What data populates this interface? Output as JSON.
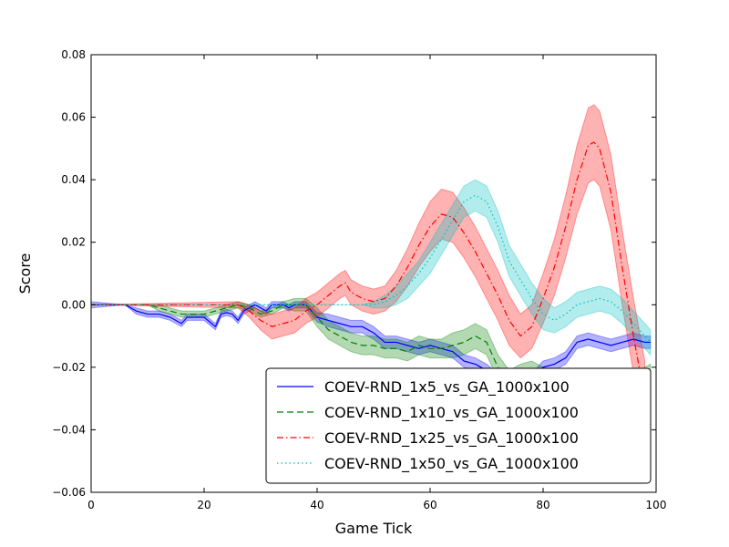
{
  "chart_data": {
    "type": "line",
    "title": "",
    "xlabel": "Game Tick",
    "ylabel": "Score",
    "xlim": [
      0,
      100
    ],
    "ylim": [
      -0.06,
      0.08
    ],
    "x_ticks": [
      "0",
      "20",
      "40",
      "60",
      "80",
      "100"
    ],
    "y_ticks": [
      "−0.06",
      "−0.04",
      "−0.02",
      "0.00",
      "0.02",
      "0.04",
      "0.06",
      "0.08"
    ],
    "grid": false,
    "legend_position": "lower-right",
    "series": [
      {
        "name": "COEV-RND_1x5_vs_GA_1000x100",
        "color": "#0000ff",
        "style": "solid",
        "x": [
          0,
          6,
          8,
          10,
          12,
          14,
          16,
          17,
          18,
          20,
          21,
          22,
          23,
          24,
          25,
          26,
          27,
          28,
          29,
          30,
          31,
          32,
          34,
          35,
          36,
          38,
          40,
          42,
          44,
          46,
          48,
          50,
          52,
          54,
          56,
          58,
          60,
          62,
          64,
          66,
          68,
          70,
          72,
          74,
          76,
          78,
          80,
          82,
          84,
          86,
          88,
          90,
          92,
          94,
          96,
          98,
          99
        ],
        "y": [
          0,
          0,
          -0.002,
          -0.003,
          -0.003,
          -0.004,
          -0.006,
          -0.004,
          -0.004,
          -0.004,
          -0.0055,
          -0.007,
          -0.003,
          -0.0025,
          -0.003,
          -0.005,
          -0.002,
          -0.001,
          0,
          -0.001,
          -0.002,
          0,
          0,
          -0.001,
          0,
          0,
          -0.004,
          -0.005,
          -0.006,
          -0.007,
          -0.007,
          -0.009,
          -0.012,
          -0.012,
          -0.013,
          -0.014,
          -0.013,
          -0.014,
          -0.015,
          -0.018,
          -0.019,
          -0.021,
          -0.024,
          -0.025,
          -0.023,
          -0.024,
          -0.02,
          -0.019,
          -0.017,
          -0.012,
          -0.011,
          -0.012,
          -0.013,
          -0.012,
          -0.011,
          -0.012,
          -0.012
        ],
        "band": [
          0.001,
          0,
          0.001,
          0.001,
          0.001,
          0.001,
          0.001,
          0.001,
          0.001,
          0.001,
          0.001,
          0.001,
          0.001,
          0.001,
          0.001,
          0.001,
          0.001,
          0.001,
          0.001,
          0.001,
          0.001,
          0.001,
          0.001,
          0.001,
          0.001,
          0.001,
          0.0015,
          0.002,
          0.002,
          0.002,
          0.002,
          0.002,
          0.002,
          0.002,
          0.002,
          0.002,
          0.002,
          0.002,
          0.002,
          0.002,
          0.002,
          0.002,
          0.002,
          0.002,
          0.002,
          0.002,
          0.002,
          0.002,
          0.002,
          0.002,
          0.002,
          0.002,
          0.002,
          0.002,
          0.002,
          0.002,
          0.002
        ]
      },
      {
        "name": "COEV-RND_1x10_vs_GA_1000x100",
        "color": "#008000",
        "style": "dashed",
        "x": [
          0,
          10,
          12,
          14,
          16,
          18,
          20,
          22,
          24,
          26,
          28,
          30,
          32,
          34,
          36,
          38,
          40,
          42,
          44,
          46,
          48,
          50,
          52,
          54,
          56,
          58,
          60,
          62,
          64,
          66,
          68,
          70,
          72,
          74,
          76,
          78,
          80,
          82,
          84,
          86,
          88,
          90,
          92,
          94,
          96,
          98,
          99
        ],
        "y": [
          0,
          0,
          -0.001,
          -0.002,
          -0.003,
          -0.003,
          -0.003,
          -0.002,
          -0.001,
          0,
          -0.001,
          -0.003,
          -0.002,
          0,
          0,
          0,
          -0.004,
          -0.008,
          -0.01,
          -0.012,
          -0.013,
          -0.013,
          -0.014,
          -0.014,
          -0.015,
          -0.013,
          -0.014,
          -0.014,
          -0.013,
          -0.012,
          -0.01,
          -0.012,
          -0.02,
          -0.025,
          -0.023,
          -0.022,
          -0.024,
          -0.026,
          -0.027,
          -0.03,
          -0.032,
          -0.031,
          -0.032,
          -0.03,
          -0.026,
          -0.024,
          -0.023
        ],
        "band": [
          0,
          0,
          0.001,
          0.001,
          0.001,
          0.001,
          0.001,
          0.001,
          0.001,
          0.001,
          0.001,
          0.001,
          0.001,
          0.001,
          0.002,
          0.002,
          0.003,
          0.003,
          0.003,
          0.003,
          0.003,
          0.003,
          0.003,
          0.003,
          0.003,
          0.003,
          0.003,
          0.003,
          0.004,
          0.004,
          0.004,
          0.004,
          0.004,
          0.004,
          0.004,
          0.004,
          0.004,
          0.004,
          0.004,
          0.004,
          0.004,
          0.004,
          0.004,
          0.004,
          0.004,
          0.004,
          0.004
        ]
      },
      {
        "name": "COEV-RND_1x25_vs_GA_1000x100",
        "color": "#ff0000",
        "style": "dashdot",
        "x": [
          0,
          26,
          28,
          30,
          32,
          34,
          36,
          38,
          40,
          42,
          44,
          45,
          46,
          48,
          50,
          52,
          54,
          56,
          58,
          60,
          62,
          64,
          66,
          68,
          70,
          72,
          74,
          76,
          78,
          80,
          82,
          84,
          86,
          88,
          89,
          90,
          92,
          94,
          96,
          98
        ],
        "y": [
          0,
          0,
          -0.002,
          -0.005,
          -0.007,
          -0.006,
          -0.005,
          -0.002,
          0,
          0.003,
          0.006,
          0.007,
          0.004,
          0.002,
          0.001,
          0.002,
          0.006,
          0.012,
          0.019,
          0.025,
          0.029,
          0.028,
          0.023,
          0.017,
          0.01,
          0.003,
          -0.005,
          -0.01,
          -0.007,
          0.002,
          0.012,
          0.025,
          0.04,
          0.051,
          0.052,
          0.05,
          0.036,
          0.012,
          -0.01,
          -0.03
        ],
        "band": [
          0,
          0.001,
          0.002,
          0.003,
          0.004,
          0.004,
          0.004,
          0.004,
          0.004,
          0.004,
          0.004,
          0.004,
          0.004,
          0.004,
          0.004,
          0.004,
          0.005,
          0.006,
          0.007,
          0.008,
          0.008,
          0.008,
          0.008,
          0.008,
          0.008,
          0.008,
          0.008,
          0.007,
          0.007,
          0.008,
          0.009,
          0.01,
          0.011,
          0.012,
          0.012,
          0.012,
          0.012,
          0.012,
          0.012,
          0.012
        ]
      },
      {
        "name": "COEV-RND_1x50_vs_GA_1000x100",
        "color": "#00bfbf",
        "style": "dotted",
        "x": [
          0,
          40,
          44,
          48,
          50,
          52,
          54,
          56,
          58,
          60,
          62,
          64,
          66,
          68,
          70,
          72,
          74,
          76,
          78,
          80,
          82,
          84,
          86,
          88,
          90,
          92,
          94,
          96,
          98,
          99
        ],
        "y": [
          0,
          0,
          0,
          0,
          0,
          0.001,
          0.003,
          0.006,
          0.01,
          0.015,
          0.021,
          0.027,
          0.033,
          0.035,
          0.033,
          0.025,
          0.014,
          0.008,
          0.002,
          -0.003,
          -0.005,
          -0.003,
          0,
          0.001,
          0.002,
          0.001,
          -0.002,
          -0.006,
          -0.01,
          -0.012
        ],
        "band": [
          0,
          0,
          0,
          0,
          0.001,
          0.002,
          0.003,
          0.004,
          0.004,
          0.005,
          0.005,
          0.005,
          0.005,
          0.005,
          0.005,
          0.005,
          0.005,
          0.005,
          0.005,
          0.005,
          0.004,
          0.004,
          0.004,
          0.004,
          0.004,
          0.004,
          0.004,
          0.004,
          0.004,
          0.004
        ]
      }
    ]
  }
}
